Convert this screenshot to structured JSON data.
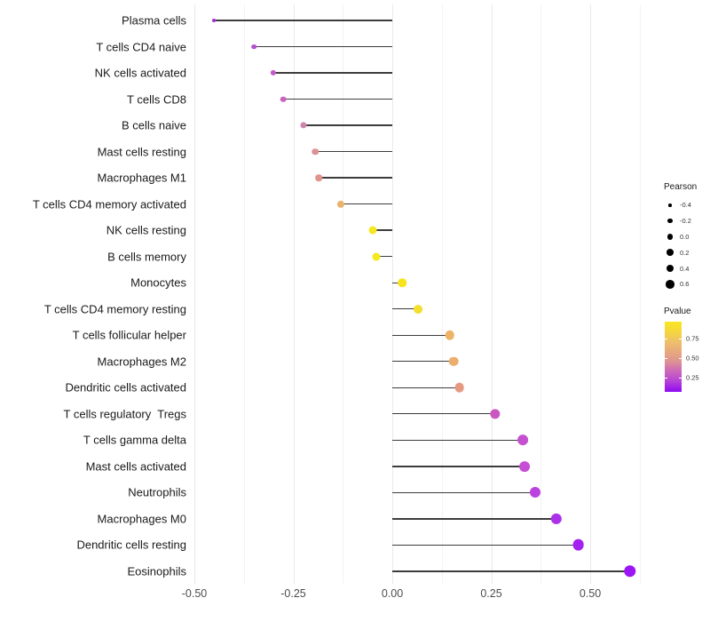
{
  "chart_data": {
    "type": "scatter",
    "variant": "lollipop",
    "orientation": "horizontal",
    "title": "",
    "xlabel": "",
    "ylabel": "",
    "grid": true,
    "baseline": 0,
    "xlim": [
      -0.512,
      0.625
    ],
    "x_ticks": [
      {
        "value": -0.5,
        "label": "-0.50"
      },
      {
        "value": -0.25,
        "label": "-0.25"
      },
      {
        "value": 0.0,
        "label": "0.00"
      },
      {
        "value": 0.25,
        "label": "0.25"
      },
      {
        "value": 0.5,
        "label": "0.50"
      }
    ],
    "x_minor_ticks": [
      -0.375,
      -0.125,
      0.125,
      0.375,
      0.625
    ],
    "points": [
      {
        "label": "Plasma cells",
        "pearson": -0.45,
        "color": "#a02fd8"
      },
      {
        "label": "T cells CD4 naive",
        "pearson": -0.35,
        "color": "#b44fd0"
      },
      {
        "label": "NK cells activated",
        "pearson": -0.3,
        "color": "#c45bc9"
      },
      {
        "label": "T cells CD8",
        "pearson": -0.275,
        "color": "#c765bd"
      },
      {
        "label": "B cells naive",
        "pearson": -0.225,
        "color": "#d083ac"
      },
      {
        "label": "Mast cells resting",
        "pearson": -0.195,
        "color": "#df9093"
      },
      {
        "label": "Macrophages M1",
        "pearson": -0.185,
        "color": "#e0938a"
      },
      {
        "label": "T cells CD4 memory activated",
        "pearson": -0.13,
        "color": "#ecb36e"
      },
      {
        "label": "NK cells resting",
        "pearson": -0.05,
        "color": "#f6e723"
      },
      {
        "label": "B cells memory",
        "pearson": -0.04,
        "color": "#f6e81e"
      },
      {
        "label": "Monocytes",
        "pearson": 0.025,
        "color": "#f8e41d"
      },
      {
        "label": "T cells CD4 memory resting",
        "pearson": 0.065,
        "color": "#f4df2b"
      },
      {
        "label": "T cells follicular helper",
        "pearson": 0.145,
        "color": "#edb466"
      },
      {
        "label": "Macrophages M2",
        "pearson": 0.155,
        "color": "#ecae6c"
      },
      {
        "label": "Dendritic cells activated",
        "pearson": 0.17,
        "color": "#e59a80"
      },
      {
        "label": "T cells regulatory  Tregs",
        "pearson": 0.26,
        "color": "#cb57c3"
      },
      {
        "label": "T cells gamma delta",
        "pearson": 0.33,
        "color": "#c551d0"
      },
      {
        "label": "Mast cells activated",
        "pearson": 0.335,
        "color": "#c64ed4"
      },
      {
        "label": "Neutrophils",
        "pearson": 0.36,
        "color": "#bb42de"
      },
      {
        "label": "Macrophages M0",
        "pearson": 0.415,
        "color": "#ad2fe9"
      },
      {
        "label": "Dendritic cells resting",
        "pearson": 0.47,
        "color": "#a521f0"
      },
      {
        "label": "Eosinophils",
        "pearson": 0.6,
        "color": "#9c15f4"
      }
    ],
    "legend": {
      "size": {
        "title": "Pearson",
        "entries": [
          {
            "value": -0.4,
            "label": "-0.4"
          },
          {
            "value": -0.2,
            "label": "-0.2"
          },
          {
            "value": 0.0,
            "label": "0.0"
          },
          {
            "value": 0.2,
            "label": "0.2"
          },
          {
            "value": 0.4,
            "label": "0.4"
          },
          {
            "value": 0.6,
            "label": "0.6"
          }
        ]
      },
      "color": {
        "title": "Pvalue",
        "ticks": [
          {
            "value": 0.75,
            "label": "0.75"
          },
          {
            "value": 0.5,
            "label": "0.50"
          },
          {
            "value": 0.25,
            "label": "0.25"
          }
        ],
        "range": [
          0.07,
          0.97
        ],
        "gradient_stops_bottom_to_top": [
          "#8e0af2",
          "#b43fd8",
          "#cb65bd",
          "#dd9293",
          "#e7a97e",
          "#eec06a",
          "#f5d63d",
          "#f9e721"
        ]
      }
    },
    "colors": {
      "stem": "#3c3c3c",
      "grid_major": "#e9e9e9",
      "grid_minor": "#f3f3f3",
      "background": "#ffffff"
    }
  }
}
